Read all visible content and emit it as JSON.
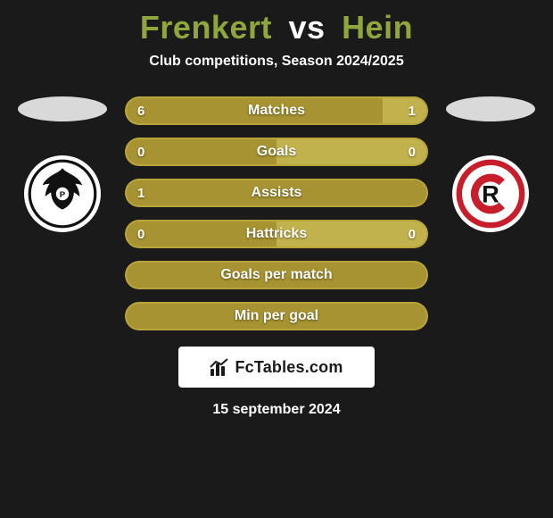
{
  "background_color": "#1a1a1a",
  "heading": {
    "player1": "Frenkert",
    "vs": "vs",
    "player2": "Hein",
    "player_color": "#8fa63a",
    "vs_color": "#ffffff",
    "fontsize": 36
  },
  "subtitle": {
    "text": "Club competitions, Season 2024/2025",
    "color": "#ffffff",
    "fontsize": 16
  },
  "left": {
    "nation_color": "#d9d9d9",
    "club": {
      "bg": "#ffffff",
      "accent": "#111111",
      "type": "eagle"
    }
  },
  "right": {
    "nation_color": "#d9d9d9",
    "club": {
      "bg": "#ffffff",
      "accent": "#c81e2b",
      "type": "letter",
      "letter": "R"
    }
  },
  "bars": {
    "track_border_color": "#b7a43a",
    "label_color": "#ffffff",
    "value_color": "#ffffff",
    "label_fontsize": 16,
    "value_fontsize": 15,
    "left_color": "#a79331",
    "right_color": "#c2b24d",
    "height": 32,
    "items": [
      {
        "label": "Matches",
        "left_value": "6",
        "right_value": "1",
        "left_pct": 85,
        "right_pct": 15,
        "show_values": true
      },
      {
        "label": "Goals",
        "left_value": "0",
        "right_value": "0",
        "left_pct": 50,
        "right_pct": 50,
        "show_values": true
      },
      {
        "label": "Assists",
        "left_value": "1",
        "right_value": "",
        "left_pct": 100,
        "right_pct": 0,
        "show_values": true
      },
      {
        "label": "Hattricks",
        "left_value": "0",
        "right_value": "0",
        "left_pct": 50,
        "right_pct": 50,
        "show_values": true
      },
      {
        "label": "Goals per match",
        "left_value": "",
        "right_value": "",
        "left_pct": 100,
        "right_pct": 0,
        "show_values": false
      },
      {
        "label": "Min per goal",
        "left_value": "",
        "right_value": "",
        "left_pct": 100,
        "right_pct": 0,
        "show_values": false
      }
    ]
  },
  "footer_badge": {
    "bg": "#ffffff",
    "text_color": "#1a1a1a",
    "icon_color": "#1a1a1a",
    "text": "FcTables.com",
    "fontsize": 18
  },
  "date": {
    "text": "15 september 2024",
    "color": "#ffffff",
    "fontsize": 16
  }
}
